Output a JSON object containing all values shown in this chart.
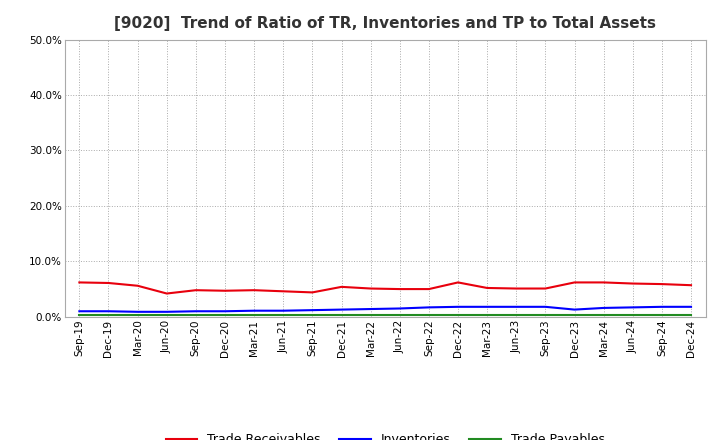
{
  "title": "[9020]  Trend of Ratio of TR, Inventories and TP to Total Assets",
  "x_labels": [
    "Sep-19",
    "Dec-19",
    "Mar-20",
    "Jun-20",
    "Sep-20",
    "Dec-20",
    "Mar-21",
    "Jun-21",
    "Sep-21",
    "Dec-21",
    "Mar-22",
    "Jun-22",
    "Sep-22",
    "Dec-22",
    "Mar-23",
    "Jun-23",
    "Sep-23",
    "Dec-23",
    "Mar-24",
    "Jun-24",
    "Sep-24",
    "Dec-24"
  ],
  "trade_receivables": [
    0.062,
    0.061,
    0.056,
    0.042,
    0.048,
    0.047,
    0.048,
    0.046,
    0.044,
    0.054,
    0.051,
    0.05,
    0.05,
    0.062,
    0.052,
    0.051,
    0.051,
    0.062,
    0.062,
    0.06,
    0.059,
    0.057
  ],
  "inventories": [
    0.01,
    0.01,
    0.009,
    0.009,
    0.01,
    0.01,
    0.011,
    0.011,
    0.012,
    0.013,
    0.014,
    0.015,
    0.017,
    0.018,
    0.018,
    0.018,
    0.018,
    0.013,
    0.016,
    0.017,
    0.018,
    0.018
  ],
  "trade_payables": [
    0.003,
    0.003,
    0.003,
    0.003,
    0.003,
    0.003,
    0.003,
    0.003,
    0.003,
    0.003,
    0.003,
    0.003,
    0.003,
    0.003,
    0.003,
    0.003,
    0.003,
    0.003,
    0.003,
    0.003,
    0.003,
    0.003
  ],
  "tr_color": "#e8000d",
  "inv_color": "#0000ff",
  "tp_color": "#228B22",
  "ylim": [
    0.0,
    0.5
  ],
  "yticks": [
    0.0,
    0.1,
    0.2,
    0.3,
    0.4,
    0.5
  ],
  "background_color": "#ffffff",
  "plot_bg_color": "#ffffff",
  "legend_labels": [
    "Trade Receivables",
    "Inventories",
    "Trade Payables"
  ],
  "title_fontsize": 11,
  "tick_fontsize": 7.5,
  "legend_fontsize": 9
}
